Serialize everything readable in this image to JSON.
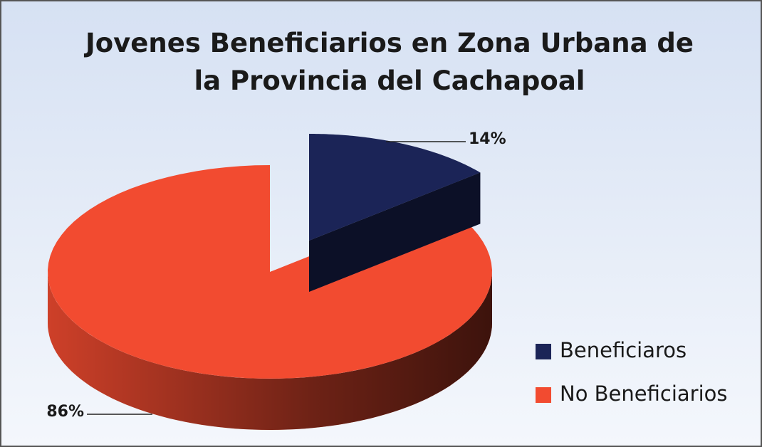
{
  "chart_data": {
    "type": "pie",
    "title": "Jovenes Beneficiarios en Zona Urbana de la Provincia del Cachapoal",
    "categories": [
      "Beneficiaros",
      "No Beneficiarios"
    ],
    "values": [
      14,
      86
    ],
    "value_labels": [
      "14%",
      "86%"
    ],
    "colors": [
      "#1b2457",
      "#f24b30"
    ],
    "legend": "right"
  }
}
